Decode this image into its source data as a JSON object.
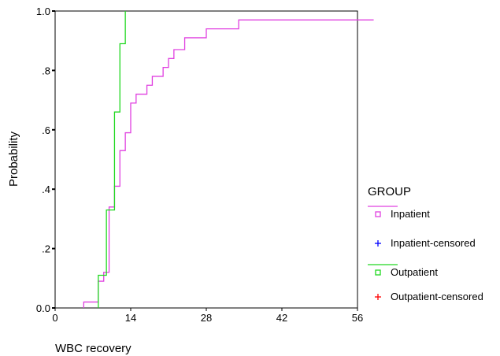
{
  "chart_data": {
    "type": "line",
    "title": "",
    "xlabel": "WBC recovery",
    "ylabel": "Probability",
    "xlim": [
      0,
      56
    ],
    "ylim": [
      0,
      1
    ],
    "x_ticks": [
      0,
      14,
      28,
      42,
      56
    ],
    "y_ticks": [
      0,
      0.2,
      0.4,
      0.6,
      0.8,
      1.0
    ],
    "x_tick_labels": [
      "0",
      "14",
      "28",
      "42",
      "56"
    ],
    "y_tick_labels": [
      "0.0",
      ".2",
      ".4",
      ".6",
      ".8",
      "1.0"
    ],
    "step": true,
    "grid": false,
    "legend_placement": "right",
    "legend": {
      "title": "GROUP",
      "entries": [
        {
          "label": "Inpatient",
          "kind": "line-square",
          "color": "#e040e0"
        },
        {
          "label": "Inpatient-censored",
          "kind": "plus",
          "color": "#0000ff"
        },
        {
          "label": "Outpatient",
          "kind": "line-square",
          "color": "#20d820"
        },
        {
          "label": "Outpatient-censored",
          "kind": "plus",
          "color": "#ff0000"
        }
      ]
    },
    "series": [
      {
        "name": "Inpatient",
        "color": "#e040e0",
        "x": [
          5.3,
          8,
          9,
          10,
          11,
          12,
          13,
          14,
          15,
          16,
          17,
          18,
          19,
          20,
          21,
          22,
          24,
          28,
          34,
          59
        ],
        "y": [
          0.02,
          0.09,
          0.12,
          0.34,
          0.41,
          0.53,
          0.59,
          0.69,
          0.72,
          0.72,
          0.75,
          0.78,
          0.78,
          0.81,
          0.84,
          0.87,
          0.91,
          0.94,
          0.97,
          0.97
        ]
      },
      {
        "name": "Outpatient",
        "color": "#20d820",
        "x": [
          8,
          8.5,
          9.5,
          11,
          12,
          13
        ],
        "y": [
          0.11,
          0.11,
          0.33,
          0.66,
          0.89,
          1.0
        ]
      }
    ]
  }
}
